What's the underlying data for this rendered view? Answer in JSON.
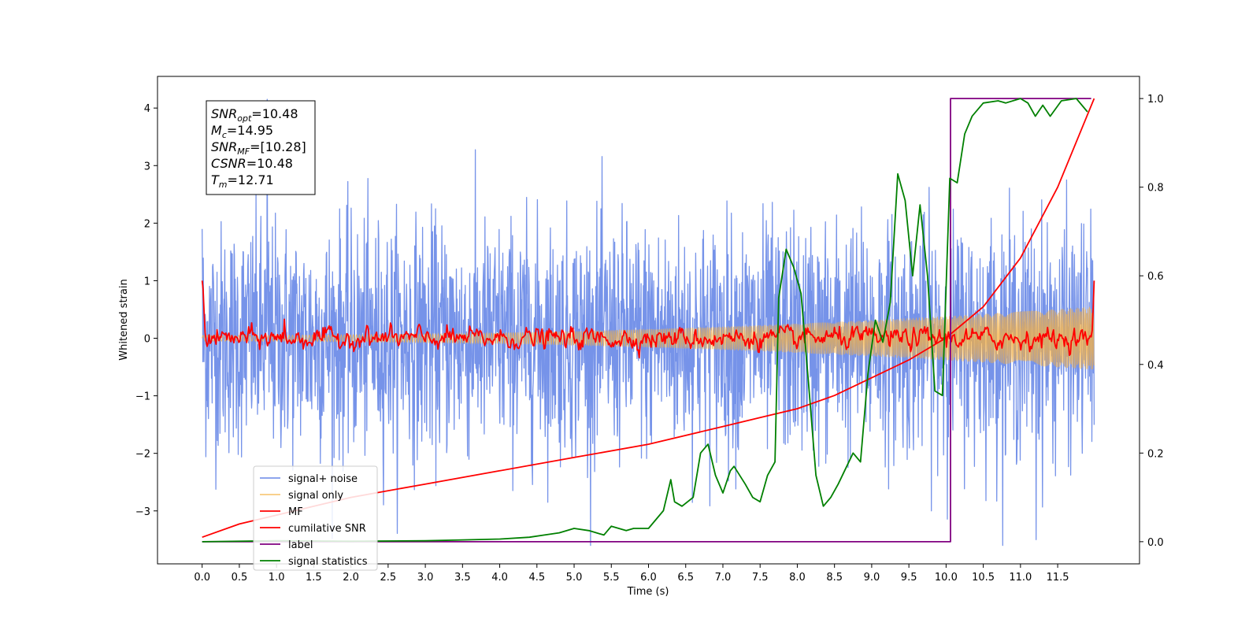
{
  "chart_data": {
    "type": "line",
    "xlabel": "Time (s)",
    "ylabel": "Whitened strain",
    "ylabel_right": "",
    "xlim": [
      -0.6,
      12.6
    ],
    "ylim": [
      -3.92,
      4.55
    ],
    "ylim_right": [
      -0.05,
      1.05
    ],
    "x_ticks": [
      0.0,
      0.5,
      1.0,
      1.5,
      2.0,
      2.5,
      3.0,
      3.5,
      4.0,
      4.5,
      5.0,
      5.5,
      6.0,
      6.5,
      7.0,
      7.5,
      8.0,
      8.5,
      9.0,
      9.5,
      10.0,
      10.5,
      11.0,
      11.5
    ],
    "x_tick_labels": [
      "0.0",
      "0.5",
      "1.0",
      "1.5",
      "2.0",
      "2.5",
      "3.0",
      "3.5",
      "4.0",
      "4.5",
      "5.0",
      "5.5",
      "6.0",
      "6.5",
      "7.0",
      "7.5",
      "8.0",
      "8.5",
      "9.0",
      "9.5",
      "10.0",
      "10.5",
      "11.0",
      "11.5"
    ],
    "y_ticks": [
      -3,
      -2,
      -1,
      0,
      1,
      2,
      3,
      4
    ],
    "y_tick_labels": [
      "−3",
      "−2",
      "−1",
      "0",
      "1",
      "2",
      "3",
      "4"
    ],
    "y_ticks_right": [
      0.0,
      0.2,
      0.4,
      0.6,
      0.8,
      1.0
    ],
    "y_tick_labels_right": [
      "0.0",
      "0.2",
      "0.4",
      "0.6",
      "0.8",
      "1.0"
    ],
    "grid": false,
    "legend_position": "lower-left",
    "annotation": {
      "position": "top-left",
      "lines": [
        {
          "sym": "SNR",
          "sub": "opt",
          "value": "=10.48"
        },
        {
          "sym": "M",
          "sub": "c",
          "value": "=14.95"
        },
        {
          "sym": "SNR",
          "sub": "MF",
          "value": "=[10.28]"
        },
        {
          "sym": "CSNR",
          "sub": "",
          "value": "=10.48"
        },
        {
          "sym": "T",
          "sub": "m",
          "value": "=12.71"
        }
      ]
    },
    "series": [
      {
        "name": "signal+ noise",
        "axis": "left",
        "color": "#4169e1",
        "style": "noise",
        "x_range": [
          0.0,
          11.99
        ],
        "amplitude_envelope": [
          2.0,
          2.0
        ],
        "extreme_min": -3.5,
        "extreme_max": 4.15
      },
      {
        "name": "signal only",
        "axis": "left",
        "color": "#f5b041",
        "style": "chirp",
        "x_range": [
          0.0,
          11.99
        ],
        "amplitude_start": 0.05,
        "amplitude_end": 0.55
      },
      {
        "name": "MF",
        "axis": "left",
        "color": "#ff0000",
        "style": "jitter",
        "x_range": [
          0.0,
          11.99
        ],
        "start_value": 1.0,
        "end_value": 1.0,
        "jitter_amplitude": 0.1
      },
      {
        "name": "cumilative SNR",
        "axis": "right",
        "color": "#ff0000",
        "x": [
          0.0,
          0.5,
          1.0,
          2.0,
          3.0,
          4.0,
          5.0,
          6.0,
          7.0,
          7.5,
          8.0,
          8.5,
          9.0,
          9.5,
          10.0,
          10.5,
          11.0,
          11.5,
          11.99
        ],
        "y": [
          0.01,
          0.04,
          0.06,
          0.1,
          0.13,
          0.16,
          0.19,
          0.22,
          0.26,
          0.28,
          0.3,
          0.33,
          0.37,
          0.41,
          0.46,
          0.53,
          0.64,
          0.8,
          1.0
        ]
      },
      {
        "name": "label",
        "axis": "right",
        "color": "#800080",
        "x": [
          0.0,
          10.06,
          10.06,
          11.95
        ],
        "y": [
          0.0,
          0.0,
          1.0,
          1.0
        ]
      },
      {
        "name": "signal statistics",
        "axis": "right",
        "color": "#008000",
        "x": [
          0.0,
          1.0,
          2.0,
          3.0,
          3.5,
          4.0,
          4.4,
          4.6,
          4.8,
          5.0,
          5.2,
          5.4,
          5.5,
          5.7,
          5.8,
          6.0,
          6.2,
          6.3,
          6.35,
          6.45,
          6.6,
          6.7,
          6.8,
          6.9,
          7.0,
          7.1,
          7.15,
          7.3,
          7.4,
          7.5,
          7.6,
          7.7,
          7.75,
          7.85,
          7.95,
          8.05,
          8.15,
          8.25,
          8.35,
          8.45,
          8.55,
          8.75,
          8.85,
          8.95,
          9.05,
          9.15,
          9.25,
          9.35,
          9.45,
          9.55,
          9.65,
          9.75,
          9.85,
          9.95,
          10.05,
          10.15,
          10.25,
          10.35,
          10.5,
          10.7,
          10.8,
          11.0,
          11.1,
          11.2,
          11.3,
          11.4,
          11.55,
          11.75,
          11.9
        ],
        "y": [
          0.0,
          0.002,
          0.001,
          0.002,
          0.004,
          0.006,
          0.01,
          0.015,
          0.02,
          0.03,
          0.025,
          0.015,
          0.035,
          0.025,
          0.03,
          0.03,
          0.07,
          0.14,
          0.09,
          0.08,
          0.1,
          0.2,
          0.22,
          0.15,
          0.11,
          0.16,
          0.17,
          0.13,
          0.1,
          0.09,
          0.15,
          0.18,
          0.55,
          0.66,
          0.62,
          0.56,
          0.36,
          0.15,
          0.08,
          0.1,
          0.13,
          0.2,
          0.18,
          0.38,
          0.5,
          0.45,
          0.54,
          0.83,
          0.77,
          0.6,
          0.76,
          0.6,
          0.34,
          0.33,
          0.82,
          0.81,
          0.92,
          0.96,
          0.99,
          0.995,
          0.99,
          1.0,
          0.99,
          0.96,
          0.985,
          0.96,
          0.995,
          1.0,
          0.97
        ]
      }
    ]
  }
}
